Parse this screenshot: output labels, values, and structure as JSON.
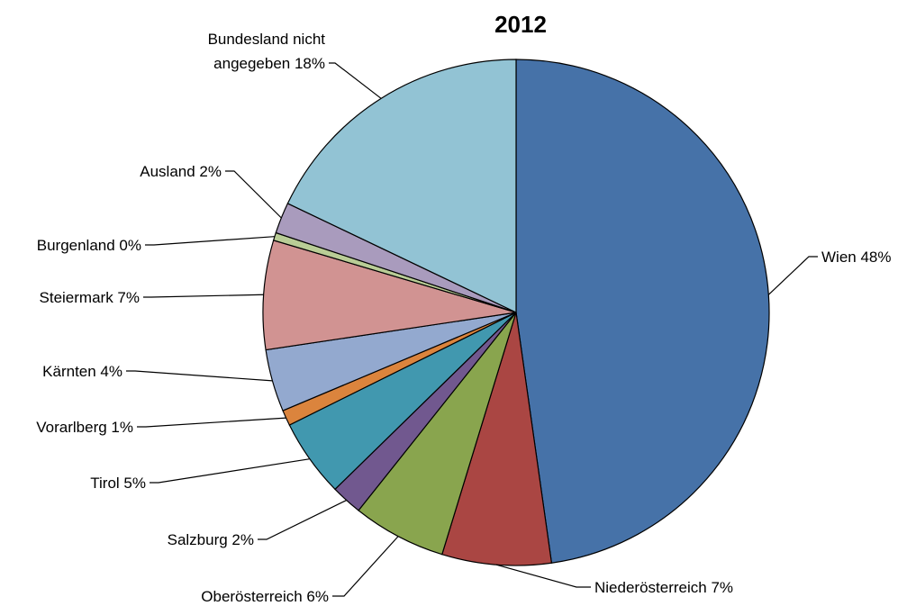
{
  "chart_data": {
    "type": "pie",
    "title": "2012",
    "slices": [
      {
        "label": "Wien 48%",
        "name": "Wien",
        "value": 48,
        "color": "#4672A8"
      },
      {
        "label": "Niederösterreich 7%",
        "name": "Niederösterreich",
        "value": 7,
        "color": "#AA4643"
      },
      {
        "label": "Oberösterreich 6%",
        "name": "Oberösterreich",
        "value": 6,
        "color": "#89A54E"
      },
      {
        "label": "Salzburg 2%",
        "name": "Salzburg",
        "value": 2,
        "color": "#71588F"
      },
      {
        "label": "Tirol 5%",
        "name": "Tirol",
        "value": 5,
        "color": "#4198AF"
      },
      {
        "label": "Vorarlberg 1%",
        "name": "Vorarlberg",
        "value": 1,
        "color": "#DB843D"
      },
      {
        "label": "Kärnten 4%",
        "name": "Kärnten",
        "value": 4,
        "color": "#93A9CF"
      },
      {
        "label": "Steiermark 7%",
        "name": "Steiermark",
        "value": 7,
        "color": "#D19392"
      },
      {
        "label": "Burgenland 0%",
        "name": "Burgenland",
        "value": 0.5,
        "color": "#B9CD96"
      },
      {
        "label": "Ausland 2%",
        "name": "Ausland",
        "value": 2,
        "color": "#A99BBD"
      },
      {
        "label": "Bundesland nicht angegeben 18%",
        "name": "Bundesland nicht angegeben",
        "value": 18,
        "color": "#92C3D4",
        "label_lines": [
          "Bundesland nicht",
          "angegeben 18%"
        ]
      }
    ]
  }
}
